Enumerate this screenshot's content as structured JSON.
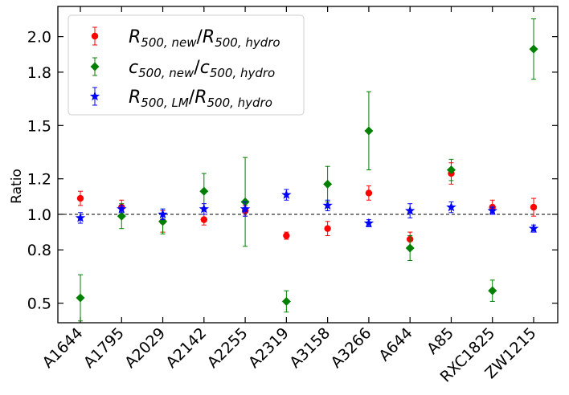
{
  "chart_data": {
    "type": "scatter",
    "title": "",
    "xlabel": "",
    "ylabel": "Ratio",
    "ylim": [
      0.39,
      2.17
    ],
    "yticks": [
      "0.5",
      "0.8",
      "1.0",
      "1.2",
      "1.5",
      "1.8",
      "2.0"
    ],
    "categories": [
      "A1644",
      "A1795",
      "A2029",
      "A2142",
      "A2255",
      "A2319",
      "A3158",
      "A3266",
      "A644",
      "A85",
      "RXC1825",
      "ZW1215"
    ],
    "reference_line": 1.0,
    "legend_position": "top-left",
    "grid": false,
    "series": [
      {
        "name": "R500,new / R500,hydro",
        "marker": "circle",
        "color": "#ff0000",
        "values": [
          1.09,
          1.04,
          0.96,
          0.97,
          1.02,
          0.88,
          0.92,
          1.12,
          0.86,
          1.23,
          1.04,
          1.04
        ],
        "err": [
          0.04,
          0.04,
          0.06,
          0.03,
          0.03,
          0.02,
          0.04,
          0.04,
          0.04,
          0.06,
          0.04,
          0.05
        ]
      },
      {
        "name": "c500,new / c500,hydro",
        "marker": "diamond",
        "color": "#008000",
        "values": [
          0.53,
          0.99,
          0.96,
          1.13,
          1.07,
          0.51,
          1.17,
          1.47,
          0.81,
          1.25,
          0.57,
          1.93
        ],
        "err": [
          0.13,
          0.07,
          0.07,
          0.1,
          0.25,
          0.06,
          0.1,
          0.22,
          0.07,
          0.06,
          0.06,
          0.17
        ]
      },
      {
        "name": "R500,LM / R500,hydro",
        "marker": "star",
        "color": "#0000ff",
        "values": [
          0.98,
          1.03,
          1.0,
          1.03,
          1.03,
          1.11,
          1.05,
          0.95,
          1.02,
          1.04,
          1.02,
          0.92
        ],
        "err": [
          0.03,
          0.02,
          0.03,
          0.03,
          0.04,
          0.03,
          0.03,
          0.02,
          0.04,
          0.03,
          0.02,
          0.02
        ]
      }
    ]
  },
  "legend": {
    "items": [
      {
        "base": "R",
        "sub1": "500, new",
        "sep": "/",
        "base2": "R",
        "sub2": "500, hydro"
      },
      {
        "base": "c",
        "sub1": "500, new",
        "sep": "/",
        "base2": "c",
        "sub2": "500, hydro"
      },
      {
        "base": "R",
        "sub1": "500, LM",
        "sep": "/",
        "base2": "R",
        "sub2": "500, hydro"
      }
    ]
  }
}
